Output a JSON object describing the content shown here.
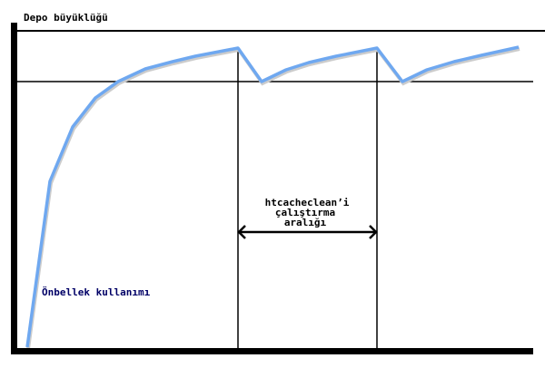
{
  "diagram": {
    "y_axis_label": "Depo büyüklüğü",
    "curve_label": "Önbellek kullanımı",
    "interval_label": [
      "htcacheclean’i",
      "çalıştırma",
      "aralığı"
    ],
    "colors": {
      "curve": "#6fa8f0",
      "axes": "#000000",
      "curve_label": "#000066"
    }
  }
}
